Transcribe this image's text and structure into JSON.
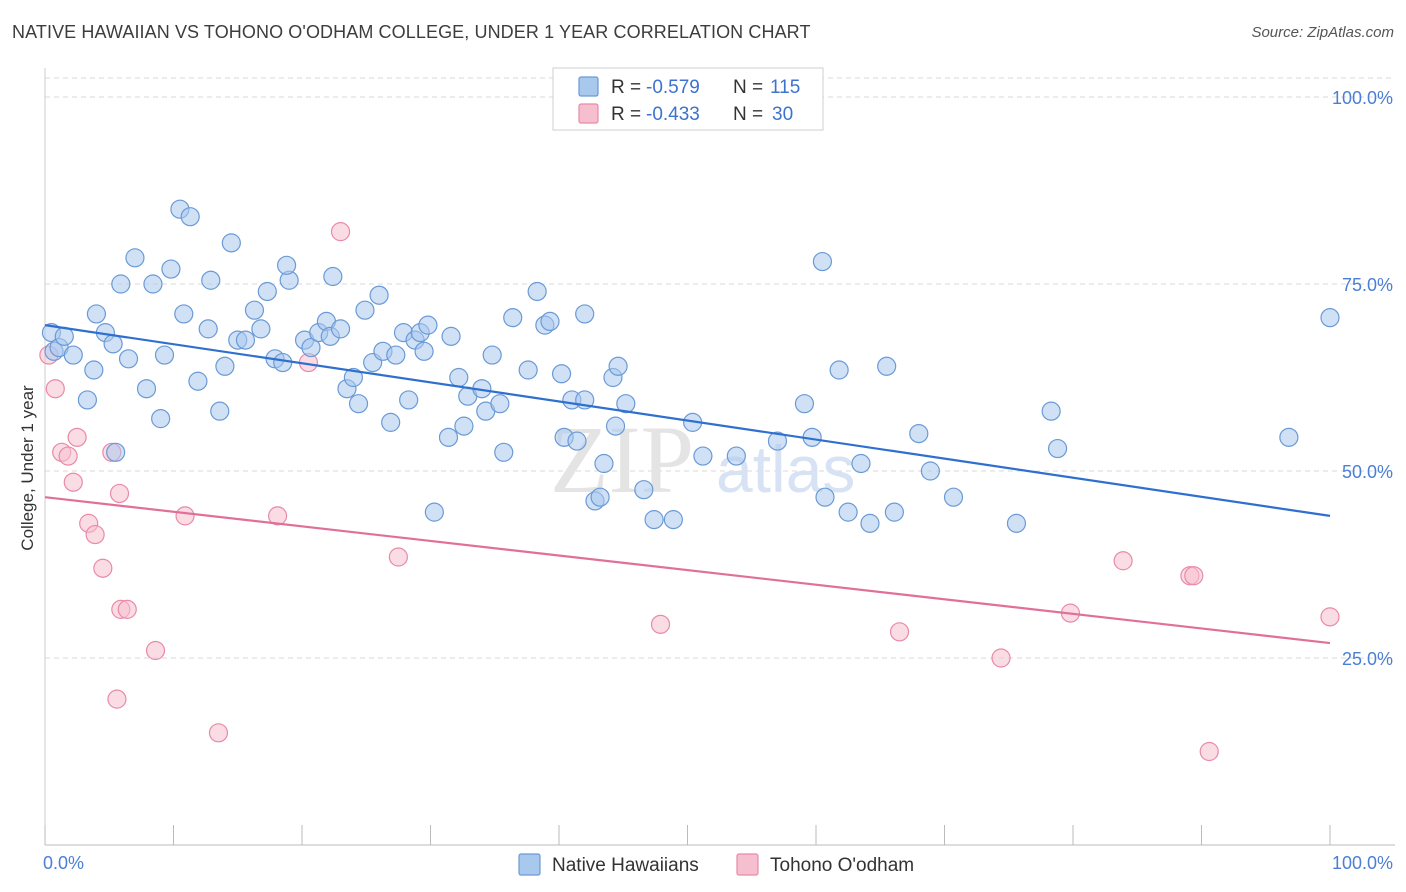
{
  "header": {
    "title": "NATIVE HAWAIIAN VS TOHONO O'ODHAM COLLEGE, UNDER 1 YEAR CORRELATION CHART",
    "source": "Source: ZipAtlas.com"
  },
  "colors": {
    "blue_fill": "#a9c8ee",
    "blue_stroke": "#6a9ad6",
    "blue_line": "#2f6fcf",
    "pink_fill": "#f6bfd0",
    "pink_stroke": "#e98aa8",
    "pink_line": "#e0709a",
    "grid": "#d9d9d9",
    "tick_text": "#4a7fd4"
  },
  "legend": {
    "r_label": "R =",
    "n_label": "N =",
    "rows": [
      {
        "r": "-0.579",
        "n": "115"
      },
      {
        "r": "-0.433",
        "n": "30"
      }
    ]
  },
  "watermark": {
    "zip": "ZIP",
    "atlas": "atlas"
  },
  "chart_data": {
    "type": "scatter",
    "title": "NATIVE HAWAIIAN VS TOHONO O'ODHAM COLLEGE, UNDER 1 YEAR CORRELATION CHART",
    "xlabel": "",
    "ylabel": "College, Under 1 year",
    "xlim": [
      0,
      100
    ],
    "ylim": [
      0,
      105
    ],
    "x_tick_labels": [
      "0.0%",
      "100.0%"
    ],
    "y_ticks": [
      25,
      50,
      75,
      100
    ],
    "y_tick_labels": [
      "25.0%",
      "50.0%",
      "75.0%",
      "100.0%"
    ],
    "grid": true,
    "series": [
      {
        "name": "Native Hawaiians",
        "r": -0.579,
        "n": 115,
        "trend": {
          "x": [
            0,
            100
          ],
          "y": [
            69.5,
            44.0
          ]
        },
        "points": [
          [
            0.5,
            68.5
          ],
          [
            0.7,
            66.0
          ],
          [
            1.1,
            66.5
          ],
          [
            1.5,
            68.0
          ],
          [
            2.2,
            65.5
          ],
          [
            3.3,
            59.5
          ],
          [
            4.0,
            71.0
          ],
          [
            4.7,
            68.5
          ],
          [
            3.8,
            63.5
          ],
          [
            5.3,
            67.0
          ],
          [
            5.5,
            52.5
          ],
          [
            5.9,
            75.0
          ],
          [
            6.5,
            65.0
          ],
          [
            7.0,
            78.5
          ],
          [
            7.9,
            61.0
          ],
          [
            8.4,
            75.0
          ],
          [
            9.0,
            57.0
          ],
          [
            9.3,
            65.5
          ],
          [
            9.8,
            77.0
          ],
          [
            10.5,
            85.0
          ],
          [
            11.3,
            84.0
          ],
          [
            10.8,
            71.0
          ],
          [
            11.9,
            62.0
          ],
          [
            12.7,
            69.0
          ],
          [
            12.9,
            75.5
          ],
          [
            13.6,
            58.0
          ],
          [
            14.0,
            64.0
          ],
          [
            14.5,
            80.5
          ],
          [
            15.0,
            67.5
          ],
          [
            15.6,
            67.5
          ],
          [
            16.3,
            71.5
          ],
          [
            16.8,
            69.0
          ],
          [
            17.3,
            74.0
          ],
          [
            17.9,
            65.0
          ],
          [
            18.5,
            64.5
          ],
          [
            19.0,
            75.5
          ],
          [
            18.8,
            77.5
          ],
          [
            20.2,
            67.5
          ],
          [
            20.7,
            66.5
          ],
          [
            21.3,
            68.5
          ],
          [
            21.9,
            70.0
          ],
          [
            22.4,
            76.0
          ],
          [
            22.2,
            68.0
          ],
          [
            23.0,
            69.0
          ],
          [
            23.5,
            61.0
          ],
          [
            24.0,
            62.5
          ],
          [
            24.4,
            59.0
          ],
          [
            24.9,
            71.5
          ],
          [
            25.5,
            64.5
          ],
          [
            26.0,
            73.5
          ],
          [
            26.3,
            66.0
          ],
          [
            26.9,
            56.5
          ],
          [
            27.3,
            65.5
          ],
          [
            27.9,
            68.5
          ],
          [
            28.3,
            59.5
          ],
          [
            28.8,
            67.5
          ],
          [
            29.2,
            68.5
          ],
          [
            29.5,
            66.0
          ],
          [
            29.8,
            69.5
          ],
          [
            30.3,
            44.5
          ],
          [
            31.6,
            68.0
          ],
          [
            31.4,
            54.5
          ],
          [
            32.2,
            62.5
          ],
          [
            32.6,
            56.0
          ],
          [
            32.9,
            60.0
          ],
          [
            34.0,
            61.0
          ],
          [
            34.3,
            58.0
          ],
          [
            34.8,
            65.5
          ],
          [
            35.4,
            59.0
          ],
          [
            35.7,
            52.5
          ],
          [
            36.4,
            70.5
          ],
          [
            37.6,
            63.5
          ],
          [
            38.3,
            74.0
          ],
          [
            38.9,
            69.5
          ],
          [
            39.3,
            70.0
          ],
          [
            40.2,
            63.0
          ],
          [
            40.4,
            54.5
          ],
          [
            41.0,
            59.5
          ],
          [
            41.4,
            54.0
          ],
          [
            42.0,
            71.0
          ],
          [
            42.0,
            59.5
          ],
          [
            42.8,
            46.0
          ],
          [
            43.2,
            46.5
          ],
          [
            43.5,
            51.0
          ],
          [
            44.2,
            62.5
          ],
          [
            44.6,
            64.0
          ],
          [
            44.4,
            56.0
          ],
          [
            45.2,
            59.0
          ],
          [
            46.6,
            47.5
          ],
          [
            47.4,
            43.5
          ],
          [
            48.9,
            43.5
          ],
          [
            50.4,
            56.5
          ],
          [
            51.2,
            52.0
          ],
          [
            53.8,
            52.0
          ],
          [
            57.0,
            54.0
          ],
          [
            59.1,
            59.0
          ],
          [
            59.7,
            54.5
          ],
          [
            60.5,
            78.0
          ],
          [
            60.7,
            46.5
          ],
          [
            61.8,
            63.5
          ],
          [
            62.5,
            44.5
          ],
          [
            63.5,
            51.0
          ],
          [
            64.2,
            43.0
          ],
          [
            65.5,
            64.0
          ],
          [
            66.1,
            44.5
          ],
          [
            68.0,
            55.0
          ],
          [
            68.9,
            50.0
          ],
          [
            70.7,
            46.5
          ],
          [
            75.6,
            43.0
          ],
          [
            78.3,
            58.0
          ],
          [
            78.8,
            53.0
          ],
          [
            96.8,
            54.5
          ],
          [
            100.0,
            70.5
          ]
        ]
      },
      {
        "name": "Tohono O'odham",
        "r": -0.433,
        "n": 30,
        "trend": {
          "x": [
            0,
            100
          ],
          "y": [
            46.5,
            27.0
          ]
        },
        "points": [
          [
            0.3,
            65.5
          ],
          [
            0.8,
            61.0
          ],
          [
            1.3,
            52.5
          ],
          [
            1.8,
            52.0
          ],
          [
            2.2,
            48.5
          ],
          [
            2.5,
            54.5
          ],
          [
            3.4,
            43.0
          ],
          [
            3.9,
            41.5
          ],
          [
            4.5,
            37.0
          ],
          [
            5.2,
            52.5
          ],
          [
            5.6,
            19.5
          ],
          [
            5.8,
            47.0
          ],
          [
            5.9,
            31.5
          ],
          [
            6.4,
            31.5
          ],
          [
            8.6,
            26.0
          ],
          [
            10.9,
            44.0
          ],
          [
            13.5,
            15.0
          ],
          [
            18.1,
            44.0
          ],
          [
            20.5,
            64.5
          ],
          [
            23.0,
            82.0
          ],
          [
            27.5,
            38.5
          ],
          [
            47.9,
            29.5
          ],
          [
            66.5,
            28.5
          ],
          [
            74.4,
            25.0
          ],
          [
            79.8,
            31.0
          ],
          [
            83.9,
            38.0
          ],
          [
            89.1,
            36.0
          ],
          [
            89.4,
            36.0
          ],
          [
            90.6,
            12.5
          ],
          [
            100.0,
            30.5
          ]
        ]
      }
    ]
  },
  "bottom_legend": [
    "Native Hawaiians",
    "Tohono O'odham"
  ]
}
